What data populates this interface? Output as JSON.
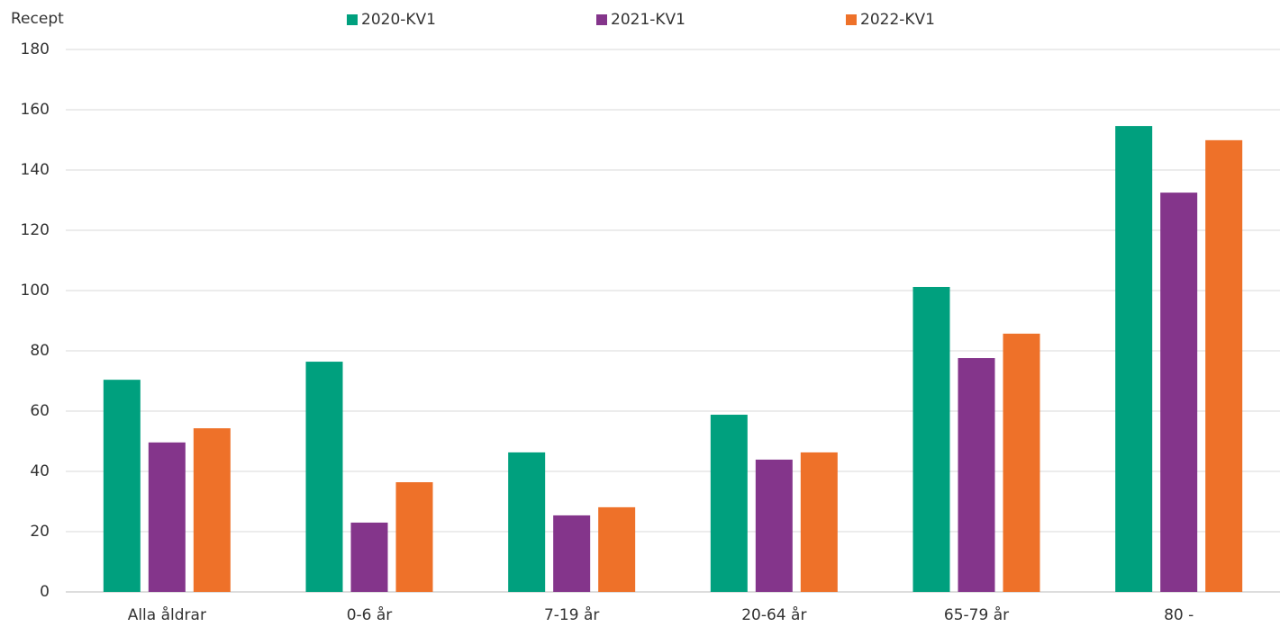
{
  "chart_data": {
    "type": "bar",
    "ylabel": "Recept",
    "categories": [
      "Alla åldrar",
      "0-6 år",
      "7-19 år",
      "20-64 år",
      "65-79 år",
      "80 -"
    ],
    "series": [
      {
        "name": "2020-KV1",
        "color": "#00a07e",
        "values": [
          70.4,
          76.4,
          46.3,
          58.8,
          101.2,
          154.6
        ]
      },
      {
        "name": "2021-KV1",
        "color": "#84358b",
        "values": [
          49.6,
          23,
          25.4,
          43.9,
          77.6,
          132.5
        ]
      },
      {
        "name": "2022-KV1",
        "color": "#ee7129",
        "values": [
          54.3,
          36.4,
          28.1,
          46.3,
          85.7,
          149.9
        ]
      }
    ],
    "ylim": [
      0,
      180
    ],
    "yticks": [
      0,
      20,
      40,
      60,
      80,
      100,
      120,
      140,
      160,
      180
    ],
    "grid": true,
    "legend": "top"
  }
}
